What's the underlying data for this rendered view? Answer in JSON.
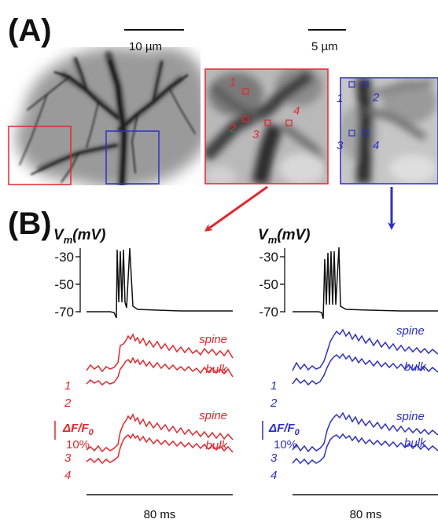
{
  "panels": {
    "a_label": "(A)",
    "b_label": "(B)"
  },
  "scale_bars": {
    "large_image": "10 µm",
    "zoom_images": "5 µm"
  },
  "roi_numbers": [
    "1",
    "2",
    "3",
    "4"
  ],
  "traces": {
    "vm_label_main": "V",
    "vm_label_sub": "m",
    "vm_label_unit": "(mV)",
    "vm_ticks": [
      "-30",
      "-50",
      "-70"
    ],
    "spine_label": "spine",
    "bulk_label": "bulk",
    "df_main": "ΔF/F",
    "df_sub": "0",
    "df_scale": "10%",
    "time_scale": "80 ms"
  },
  "colors": {
    "red": "#e8262b",
    "blue": "#2b2fd0",
    "black": "#111111"
  }
}
